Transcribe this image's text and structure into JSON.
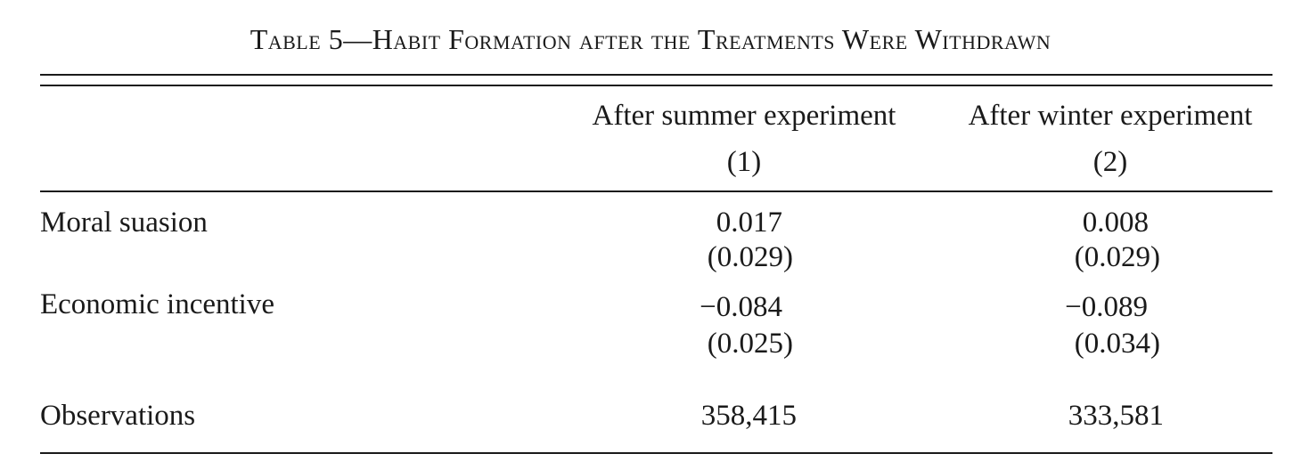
{
  "title": "Table 5—Habit Formation after the Treatments Were Withdrawn",
  "columns": [
    {
      "header": "After summer experiment",
      "number": "(1)"
    },
    {
      "header": "After winter experiment",
      "number": "(2)"
    }
  ],
  "rows": [
    {
      "label": "Moral suasion",
      "values": [
        "0.017",
        "0.008"
      ],
      "se": [
        "(0.029)",
        "(0.029)"
      ]
    },
    {
      "label": "Economic incentive",
      "values": [
        "−0.084",
        "−0.089"
      ],
      "se": [
        "(0.025)",
        "(0.034)"
      ]
    }
  ],
  "observations": {
    "label": "Observations",
    "values": [
      "358,415",
      "333,581"
    ]
  }
}
